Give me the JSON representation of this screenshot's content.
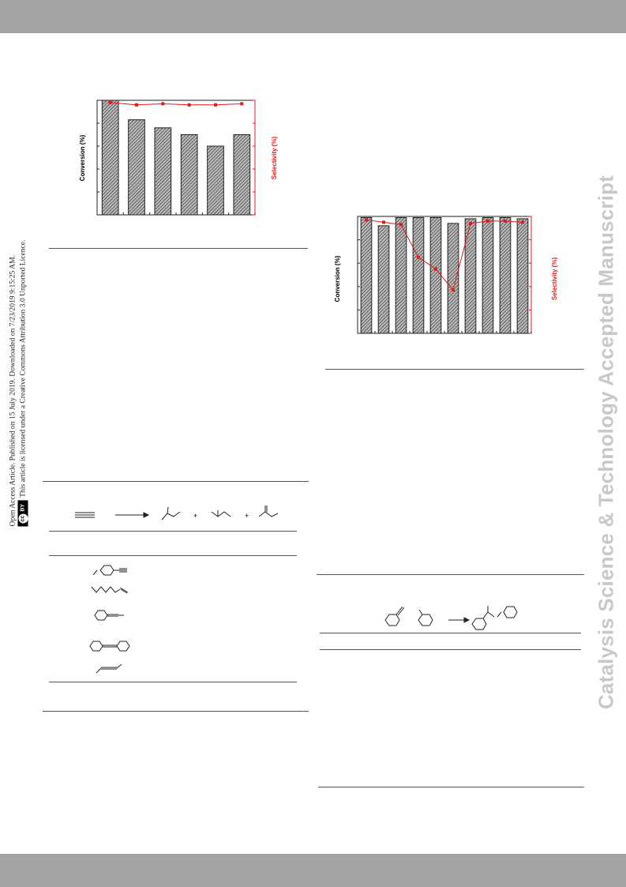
{
  "watermark": "Catalysis Science & Technology Accepted Manuscript",
  "license": {
    "line1": "Open Access Article. Published on 15 July 2019. Downloaded on 7/23/2019 9:15:25 AM.",
    "line2": "This article is licensed under a Creative Commons Attribution 3.0 Unported Licence.",
    "badge_cc": "cc",
    "badge_by": "BY"
  },
  "chart_data": [
    {
      "type": "bar",
      "ylabel": "Conversion (%)",
      "y2label": "Selectivity (%)",
      "values": [
        100,
        83,
        76,
        70,
        60,
        70
      ],
      "line_series": {
        "color": "#e31a1c",
        "values": [
          98,
          96,
          97,
          96,
          96,
          97
        ]
      },
      "ylim": [
        0,
        100
      ],
      "bar_pattern": "hatched",
      "line_color": "#e31a1c"
    },
    {
      "type": "bar",
      "ylabel": "Conversion (%)",
      "y2label": "Selectivity (%)",
      "values": [
        99,
        92,
        99,
        99,
        99,
        94,
        98,
        99,
        99,
        98
      ],
      "line_series": {
        "color": "#e31a1c",
        "values": [
          97,
          95,
          93,
          65,
          55,
          37,
          94,
          96,
          96,
          95
        ]
      },
      "ylim": [
        0,
        100
      ],
      "bar_pattern": "hatched",
      "line_color": "#e31a1c"
    }
  ],
  "scheme1": {
    "plus1": "+",
    "plus2": "+"
  },
  "icons": {
    "arrow": "reaction-arrow",
    "alkynes": [
      "4-methoxyphenylacetylene",
      "1-octyne",
      "1-phenylpropyne",
      "diphenylacetylene",
      "3-hexyne"
    ]
  }
}
